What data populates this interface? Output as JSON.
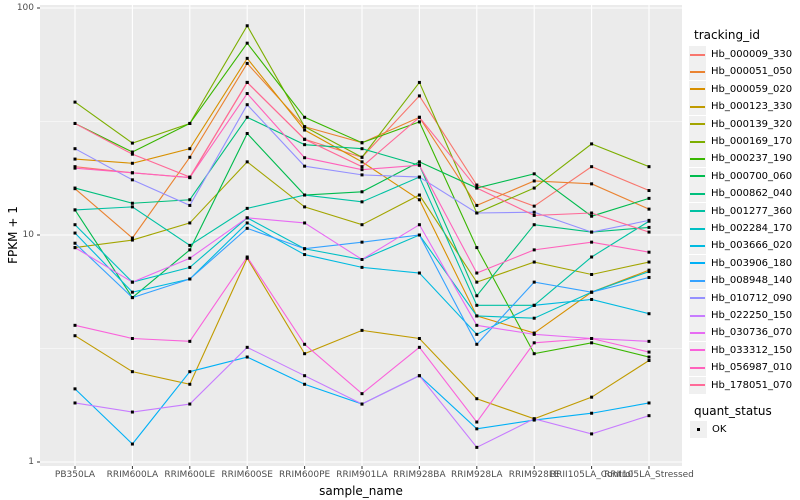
{
  "chart_data": {
    "type": "line",
    "title": "",
    "xlabel": "sample_name",
    "ylabel": "FPKM + 1",
    "y_scale": "log10",
    "ylim": [
      1,
      100
    ],
    "y_major_ticks": [
      {
        "label": "1",
        "value": 1
      },
      {
        "label": "10",
        "value": 10
      },
      {
        "label": "100",
        "value": 100
      }
    ],
    "y_minor_breaks": [
      3.1623,
      31.623
    ],
    "grid": "on",
    "point_shape": "filled-black-square",
    "categories": [
      "PB350LA",
      "RRIM600LA",
      "RRIM600LE",
      "RRIM600SE",
      "RRIM600PE",
      "RRIM901LA",
      "RRIM928BA",
      "RRIM928LA",
      "RRIM928LE",
      "RRII105LA_Control",
      "RRII105LA_Stressed"
    ],
    "series": [
      {
        "name": "Hb_000009_330",
        "color": "#F8766D",
        "values": [
          20,
          18.8,
          17.9,
          47,
          26.4,
          22,
          41,
          16.6,
          13.4,
          20,
          15.7
        ]
      },
      {
        "name": "Hb_000051_050",
        "color": "#EA8331",
        "values": [
          16,
          9.7,
          22,
          57,
          30,
          25.5,
          33,
          13.5,
          17.3,
          16.8,
          13
        ]
      },
      {
        "name": "Hb_000059_020",
        "color": "#D89000",
        "values": [
          21.6,
          20.7,
          24,
          60,
          29,
          21,
          14.3,
          4.4,
          3.7,
          5.6,
          7.0
        ]
      },
      {
        "name": "Hb_000123_330",
        "color": "#C09B00",
        "values": [
          3.6,
          2.5,
          2.2,
          7.9,
          3.0,
          3.8,
          3.5,
          1.9,
          1.55,
          1.93,
          2.8
        ]
      },
      {
        "name": "Hb_000139_320",
        "color": "#A3A500",
        "values": [
          8.8,
          9.5,
          11.3,
          21,
          13.3,
          11.1,
          15,
          6.2,
          7.6,
          6.7,
          7.6
        ]
      },
      {
        "name": "Hb_000169_170",
        "color": "#7CAE00",
        "values": [
          38.5,
          25.4,
          31,
          83.5,
          30,
          22,
          47,
          12.5,
          16.1,
          25.2,
          20
        ]
      },
      {
        "name": "Hb_000237_190",
        "color": "#39B600",
        "values": [
          31,
          23.2,
          31,
          70,
          33,
          25.5,
          31.5,
          8.8,
          3.0,
          3.35,
          2.9
        ]
      },
      {
        "name": "Hb_000700_060",
        "color": "#00BB4E",
        "values": [
          12.9,
          5.3,
          8.6,
          28,
          15,
          15.5,
          21,
          16.1,
          18.6,
          12.1,
          14.5
        ]
      },
      {
        "name": "Hb_000862_040",
        "color": "#00BF7D",
        "values": [
          16.1,
          13.8,
          14.3,
          33,
          25,
          24,
          20.3,
          5.4,
          11.1,
          10.3,
          10.8
        ]
      },
      {
        "name": "Hb_001277_360",
        "color": "#00C1A3",
        "values": [
          12.9,
          13.3,
          9.0,
          13.1,
          15,
          14,
          18,
          4.9,
          4.9,
          8.0,
          11.5
        ]
      },
      {
        "name": "Hb_002284_170",
        "color": "#00BFC4",
        "values": [
          11.1,
          6.2,
          7.2,
          11.9,
          8.7,
          7.8,
          10,
          4.4,
          4.3,
          5.6,
          6.9
        ]
      },
      {
        "name": "Hb_003666_020",
        "color": "#00BAE0",
        "values": [
          10.2,
          5.6,
          6.4,
          11.3,
          8.2,
          7.2,
          6.8,
          3.65,
          4.9,
          5.2,
          4.5
        ]
      },
      {
        "name": "Hb_003906_180",
        "color": "#00B0F6",
        "values": [
          2.1,
          1.2,
          2.5,
          2.9,
          2.2,
          1.8,
          2.4,
          1.4,
          1.53,
          1.64,
          1.82
        ]
      },
      {
        "name": "Hb_008948_140",
        "color": "#35A2FF",
        "values": [
          9.2,
          5.3,
          6.4,
          10.7,
          8.7,
          9.3,
          10,
          3.3,
          6.2,
          5.6,
          6.5
        ]
      },
      {
        "name": "Hb_010712_090",
        "color": "#9590FF",
        "values": [
          24,
          17.5,
          13.5,
          37.5,
          20.1,
          18.4,
          18,
          12.5,
          12.6,
          10.3,
          11.6
        ]
      },
      {
        "name": "Hb_022250_150",
        "color": "#C77CFF",
        "values": [
          1.82,
          1.66,
          1.8,
          3.2,
          2.4,
          1.8,
          2.4,
          1.16,
          1.55,
          1.33,
          1.6
        ]
      },
      {
        "name": "Hb_030736_070",
        "color": "#E76BF3",
        "values": [
          8.8,
          6.2,
          7.9,
          11.9,
          11.3,
          7.8,
          11.1,
          4.0,
          3.65,
          3.5,
          3.4
        ]
      },
      {
        "name": "Hb_033312_150",
        "color": "#FA62DB",
        "values": [
          4.0,
          3.5,
          3.4,
          8.0,
          3.3,
          2.0,
          3.2,
          1.5,
          3.35,
          3.5,
          3.05
        ]
      },
      {
        "name": "Hb_056987_010",
        "color": "#FF62BC",
        "values": [
          19.7,
          18.8,
          17.9,
          42,
          21.9,
          19.4,
          20.3,
          6.8,
          8.6,
          9.3,
          8.4
        ]
      },
      {
        "name": "Hb_178051_070",
        "color": "#FF6A98",
        "values": [
          31,
          22.7,
          18,
          47,
          26.4,
          20,
          33,
          16.1,
          12.2,
          12.5,
          10.3
        ]
      }
    ],
    "legend_position": "right"
  },
  "axes": {
    "x_title": "sample_name",
    "y_title": "FPKM + 1"
  },
  "legend": {
    "color_title": "tracking_id",
    "shape_title": "quant_status",
    "shape_entry_label": "OK"
  },
  "colors": {
    "panel_bg": "#EBEBEB",
    "grid": "#FFFFFF",
    "tick_text": "#4D4D4D",
    "legend_key_bg": "#F0F0F0",
    "point": "#000000"
  }
}
